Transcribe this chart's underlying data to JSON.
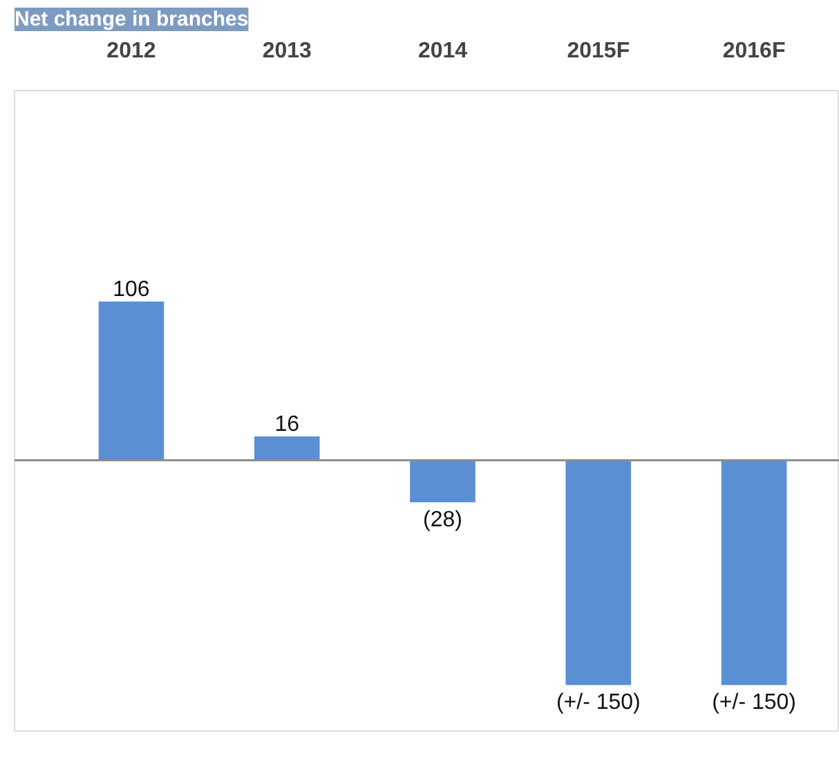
{
  "chart_data": {
    "type": "bar",
    "title": "Net change in branches",
    "categories": [
      "2012",
      "2013",
      "2014",
      "2015F",
      "2016F"
    ],
    "values": [
      106,
      16,
      -28,
      -150,
      -150
    ],
    "value_labels": [
      "106",
      "16",
      "(28)",
      "(+/- 150)",
      "(+/- 150)"
    ],
    "color": "#5b8fd4",
    "ref_lines": [
      {
        "axis": "y",
        "value": 0,
        "color": "#8c8c8c"
      }
    ],
    "grid": false
  }
}
